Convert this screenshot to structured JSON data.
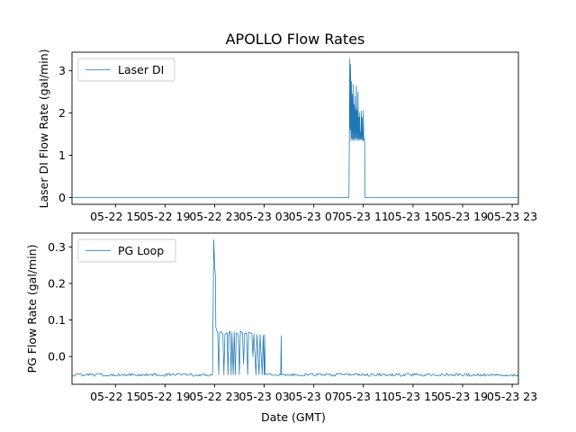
{
  "chart_data": {
    "type": "line",
    "title": "APOLLO Flow Rates",
    "xlabel": "Date (GMT)",
    "x_range": [
      "2023-05-22 11:30",
      "2023-05-23 23:30"
    ],
    "x_tick_labels": [
      "05-22 15",
      "05-22 19",
      "05-22 23",
      "05-23 03",
      "05-23 07",
      "05-23 11",
      "05-23 15",
      "05-23 19",
      "05-23 23"
    ],
    "line_color": "#1f77b4",
    "legend_position": "upper left",
    "panels": [
      {
        "ylabel": "Laser DI Flow Rate (gal/min)",
        "ylim": [
          -0.16,
          3.44
        ],
        "y_ticks": [
          0,
          1,
          2,
          3
        ],
        "y_tick_labels": [
          "0",
          "1",
          "2",
          "3"
        ],
        "series": [
          {
            "name": "Laser DI",
            "points": [
              [
                "2023-05-22 11:30",
                0
              ],
              [
                "2023-05-23 09:50",
                0
              ],
              [
                "2023-05-23 09:52",
                1.3
              ],
              [
                "2023-05-23 09:54",
                3.28
              ],
              [
                "2023-05-23 09:56",
                1.6
              ],
              [
                "2023-05-23 09:58",
                3.15
              ],
              [
                "2023-05-23 10:00",
                1.35
              ],
              [
                "2023-05-23 10:02",
                2.75
              ],
              [
                "2023-05-23 10:04",
                1.4
              ],
              [
                "2023-05-23 10:06",
                2.45
              ],
              [
                "2023-05-23 10:08",
                1.35
              ],
              [
                "2023-05-23 10:10",
                2.68
              ],
              [
                "2023-05-23 10:12",
                1.38
              ],
              [
                "2023-05-23 10:14",
                2.2
              ],
              [
                "2023-05-23 10:16",
                1.35
              ],
              [
                "2023-05-23 10:18",
                2.4
              ],
              [
                "2023-05-23 10:20",
                1.4
              ],
              [
                "2023-05-23 10:22",
                2.1
              ],
              [
                "2023-05-23 10:24",
                1.35
              ],
              [
                "2023-05-23 10:26",
                2.65
              ],
              [
                "2023-05-23 10:28",
                1.4
              ],
              [
                "2023-05-23 10:30",
                2.05
              ],
              [
                "2023-05-23 10:32",
                1.35
              ],
              [
                "2023-05-23 10:34",
                2.5
              ],
              [
                "2023-05-23 10:36",
                1.38
              ],
              [
                "2023-05-23 10:38",
                1.9
              ],
              [
                "2023-05-23 10:40",
                1.35
              ],
              [
                "2023-05-23 10:42",
                2.0
              ],
              [
                "2023-05-23 10:44",
                1.4
              ],
              [
                "2023-05-23 10:46",
                1.55
              ],
              [
                "2023-05-23 10:48",
                1.35
              ],
              [
                "2023-05-23 10:50",
                2.05
              ],
              [
                "2023-05-23 10:52",
                1.38
              ],
              [
                "2023-05-23 10:54",
                1.9
              ],
              [
                "2023-05-23 10:56",
                1.35
              ],
              [
                "2023-05-23 10:58",
                1.38
              ],
              [
                "2023-05-23 11:00",
                2.05
              ],
              [
                "2023-05-23 11:02",
                1.35
              ],
              [
                "2023-05-23 11:04",
                1.4
              ],
              [
                "2023-05-23 11:06",
                1.3
              ],
              [
                "2023-05-23 11:08",
                0
              ],
              [
                "2023-05-23 23:30",
                0
              ]
            ]
          }
        ]
      },
      {
        "ylabel": "PG Flow Rate (gal/min)",
        "ylim": [
          -0.076,
          0.338
        ],
        "y_ticks": [
          0.0,
          0.1,
          0.2,
          0.3
        ],
        "y_tick_labels": [
          "0.0",
          "0.1",
          "0.2",
          "0.3"
        ],
        "series": [
          {
            "name": "PG Loop",
            "baseline": -0.05,
            "noise": 0.004,
            "points": [
              [
                "2023-05-22 11:30",
                -0.05
              ],
              [
                "2023-05-22 22:50",
                -0.05
              ],
              [
                "2023-05-22 22:56",
                0.32
              ],
              [
                "2023-05-22 23:00",
                0.25
              ],
              [
                "2023-05-22 23:04",
                0.22
              ],
              [
                "2023-05-22 23:06",
                0.08
              ],
              [
                "2023-05-22 23:10",
                0.072
              ],
              [
                "2023-05-22 23:15",
                0.065
              ],
              [
                "2023-05-22 23:20",
                -0.05
              ],
              [
                "2023-05-22 23:24",
                0.065
              ],
              [
                "2023-05-22 23:30",
                0.068
              ],
              [
                "2023-05-22 23:40",
                0.062
              ],
              [
                "2023-05-22 23:45",
                -0.05
              ],
              [
                "2023-05-22 23:50",
                0.06
              ],
              [
                "2023-05-23 00:00",
                0.065
              ],
              [
                "2023-05-23 00:05",
                -0.05
              ],
              [
                "2023-05-23 00:08",
                0.062
              ],
              [
                "2023-05-23 00:15",
                0.07
              ],
              [
                "2023-05-23 00:20",
                -0.05
              ],
              [
                "2023-05-23 00:24",
                0.065
              ],
              [
                "2023-05-23 00:30",
                -0.05
              ],
              [
                "2023-05-23 00:35",
                0.068
              ],
              [
                "2023-05-23 00:40",
                -0.05
              ],
              [
                "2023-05-23 00:45",
                0.065
              ],
              [
                "2023-05-23 00:55",
                0.06
              ],
              [
                "2023-05-23 01:00",
                -0.05
              ],
              [
                "2023-05-23 01:05",
                0.07
              ],
              [
                "2023-05-23 01:15",
                0.065
              ],
              [
                "2023-05-23 01:20",
                -0.02
              ],
              [
                "2023-05-23 01:25",
                0.062
              ],
              [
                "2023-05-23 01:35",
                0.065
              ],
              [
                "2023-05-23 01:40",
                -0.05
              ],
              [
                "2023-05-23 01:45",
                0.066
              ],
              [
                "2023-05-23 02:00",
                0.064
              ],
              [
                "2023-05-23 02:05",
                0.0
              ],
              [
                "2023-05-23 02:10",
                0.062
              ],
              [
                "2023-05-23 02:20",
                -0.05
              ],
              [
                "2023-05-23 02:25",
                0.06
              ],
              [
                "2023-05-23 02:35",
                -0.05
              ],
              [
                "2023-05-23 02:40",
                0.06
              ],
              [
                "2023-05-23 02:50",
                -0.05
              ],
              [
                "2023-05-23 02:55",
                0.058
              ],
              [
                "2023-05-23 03:00",
                -0.05
              ],
              [
                "2023-05-23 03:02",
                0.06
              ],
              [
                "2023-05-23 03:05",
                -0.05
              ],
              [
                "2023-05-23 04:20",
                -0.05
              ],
              [
                "2023-05-23 04:22",
                0.057
              ],
              [
                "2023-05-23 04:24",
                -0.05
              ],
              [
                "2023-05-23 23:30",
                -0.05
              ]
            ]
          }
        ]
      }
    ]
  }
}
